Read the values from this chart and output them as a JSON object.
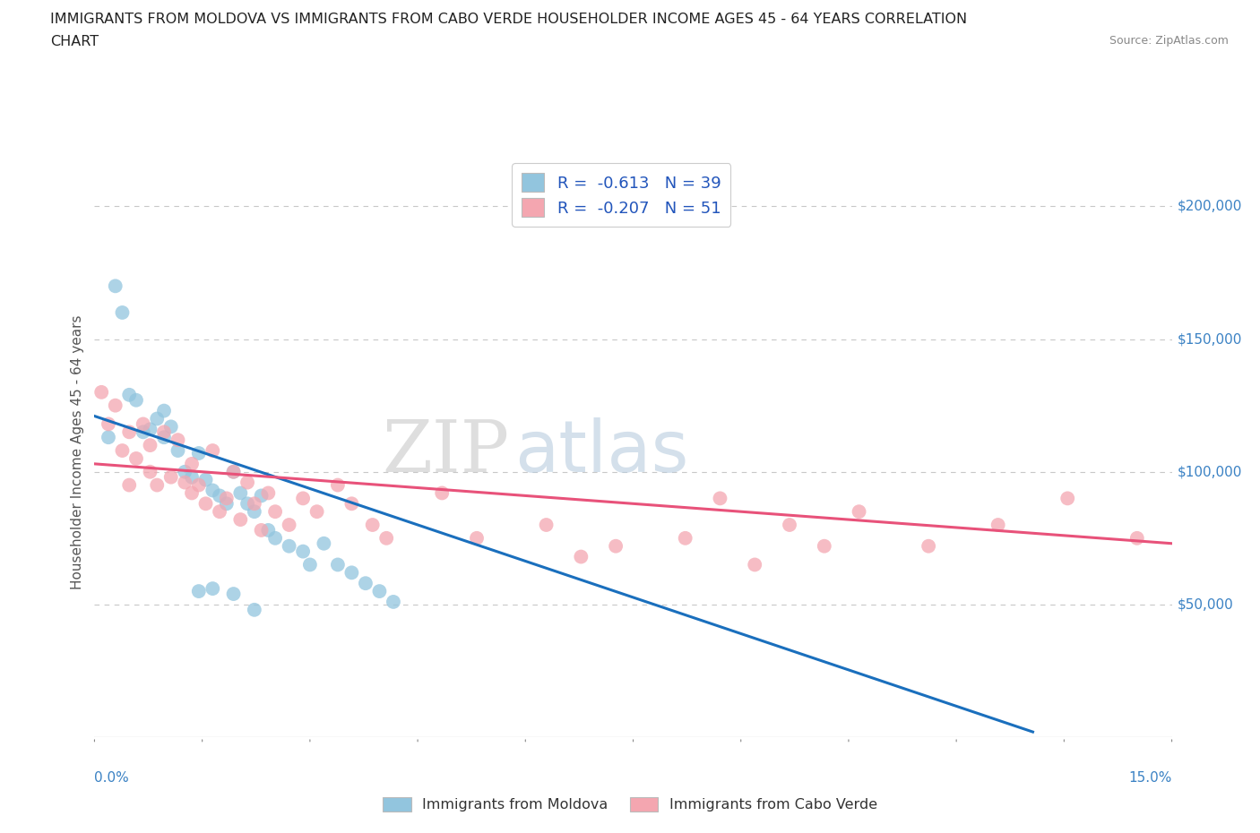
{
  "title_line1": "IMMIGRANTS FROM MOLDOVA VS IMMIGRANTS FROM CABO VERDE HOUSEHOLDER INCOME AGES 45 - 64 YEARS CORRELATION",
  "title_line2": "CHART",
  "source": "Source: ZipAtlas.com",
  "ylabel": "Householder Income Ages 45 - 64 years",
  "xlim": [
    0.0,
    0.155
  ],
  "ylim": [
    0,
    215000
  ],
  "yticks": [
    0,
    50000,
    100000,
    150000,
    200000
  ],
  "legend1_R": "-0.613",
  "legend1_N": "39",
  "legend2_R": "-0.207",
  "legend2_N": "51",
  "moldova_color": "#92c5de",
  "cabo_verde_color": "#f4a6b0",
  "moldova_line_color": "#1a6fbd",
  "cabo_verde_line_color": "#e8527a",
  "moldova_line_x": [
    0.0,
    0.135
  ],
  "moldova_line_y": [
    121000,
    2000
  ],
  "cabo_verde_line_x": [
    0.0,
    0.155
  ],
  "cabo_verde_line_y": [
    103000,
    73000
  ],
  "moldova_scatter_x": [
    0.002,
    0.003,
    0.004,
    0.005,
    0.006,
    0.007,
    0.008,
    0.009,
    0.01,
    0.01,
    0.011,
    0.012,
    0.013,
    0.014,
    0.015,
    0.016,
    0.017,
    0.018,
    0.019,
    0.02,
    0.021,
    0.022,
    0.023,
    0.024,
    0.025,
    0.026,
    0.028,
    0.03,
    0.031,
    0.033,
    0.035,
    0.037,
    0.039,
    0.041,
    0.043,
    0.015,
    0.017,
    0.02,
    0.023
  ],
  "moldova_scatter_y": [
    113000,
    170000,
    160000,
    129000,
    127000,
    115000,
    116000,
    120000,
    113000,
    123000,
    117000,
    108000,
    100000,
    98000,
    107000,
    97000,
    93000,
    91000,
    88000,
    100000,
    92000,
    88000,
    85000,
    91000,
    78000,
    75000,
    72000,
    70000,
    65000,
    73000,
    65000,
    62000,
    58000,
    55000,
    51000,
    55000,
    56000,
    54000,
    48000
  ],
  "cabo_verde_scatter_x": [
    0.001,
    0.002,
    0.003,
    0.004,
    0.005,
    0.005,
    0.006,
    0.007,
    0.008,
    0.008,
    0.009,
    0.01,
    0.011,
    0.012,
    0.013,
    0.014,
    0.014,
    0.015,
    0.016,
    0.017,
    0.018,
    0.019,
    0.02,
    0.021,
    0.022,
    0.023,
    0.024,
    0.025,
    0.026,
    0.028,
    0.03,
    0.032,
    0.035,
    0.037,
    0.04,
    0.042,
    0.05,
    0.055,
    0.065,
    0.07,
    0.075,
    0.085,
    0.09,
    0.095,
    0.1,
    0.105,
    0.11,
    0.12,
    0.13,
    0.14,
    0.15
  ],
  "cabo_verde_scatter_y": [
    130000,
    118000,
    125000,
    108000,
    115000,
    95000,
    105000,
    118000,
    100000,
    110000,
    95000,
    115000,
    98000,
    112000,
    96000,
    92000,
    103000,
    95000,
    88000,
    108000,
    85000,
    90000,
    100000,
    82000,
    96000,
    88000,
    78000,
    92000,
    85000,
    80000,
    90000,
    85000,
    95000,
    88000,
    80000,
    75000,
    92000,
    75000,
    80000,
    68000,
    72000,
    75000,
    90000,
    65000,
    80000,
    72000,
    85000,
    72000,
    80000,
    90000,
    75000
  ]
}
